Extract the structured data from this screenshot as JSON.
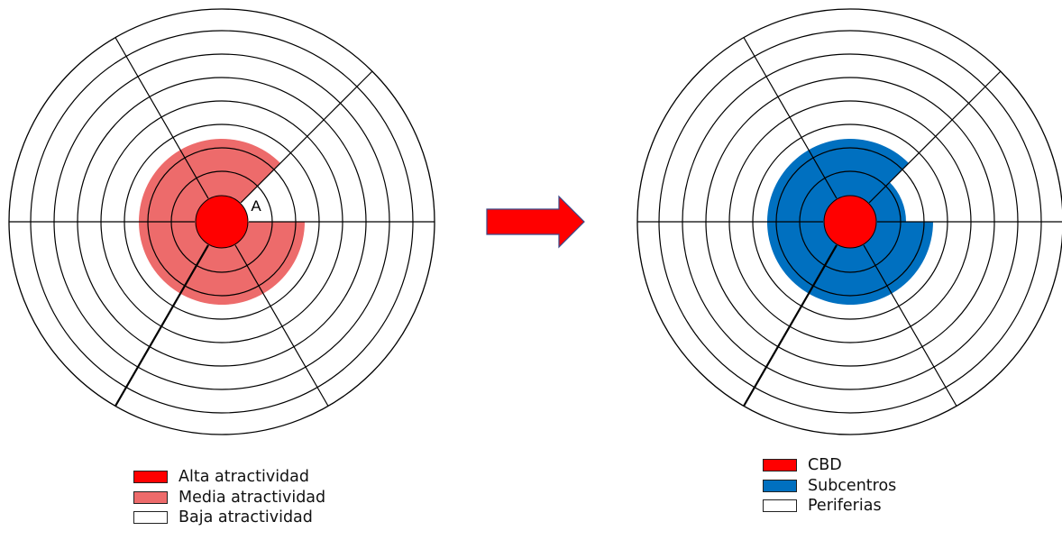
{
  "left_diagram": {
    "label_a": "A",
    "colors": {
      "center": "#ff0000",
      "highlight": "#ed6b6b",
      "empty": "#ffffff",
      "line": "#000000"
    }
  },
  "right_diagram": {
    "colors": {
      "center": "#ff0000",
      "highlight": "#0070c0",
      "empty": "#ffffff",
      "line": "#000000"
    }
  },
  "arrow": {
    "color": "#ff0000",
    "border": "#3a4a8a"
  },
  "legend_left": {
    "items": [
      {
        "label": "Alta atractividad",
        "color": "#ff0000"
      },
      {
        "label": "Media atractividad",
        "color": "#ed6b6b"
      },
      {
        "label": "Baja atractividad",
        "color": "#ffffff"
      }
    ]
  },
  "legend_right": {
    "items": [
      {
        "label": "CBD",
        "color": "#ff0000"
      },
      {
        "label": "Subcentros",
        "color": "#0070c0"
      },
      {
        "label": "Periferias",
        "color": "#ffffff"
      }
    ]
  }
}
